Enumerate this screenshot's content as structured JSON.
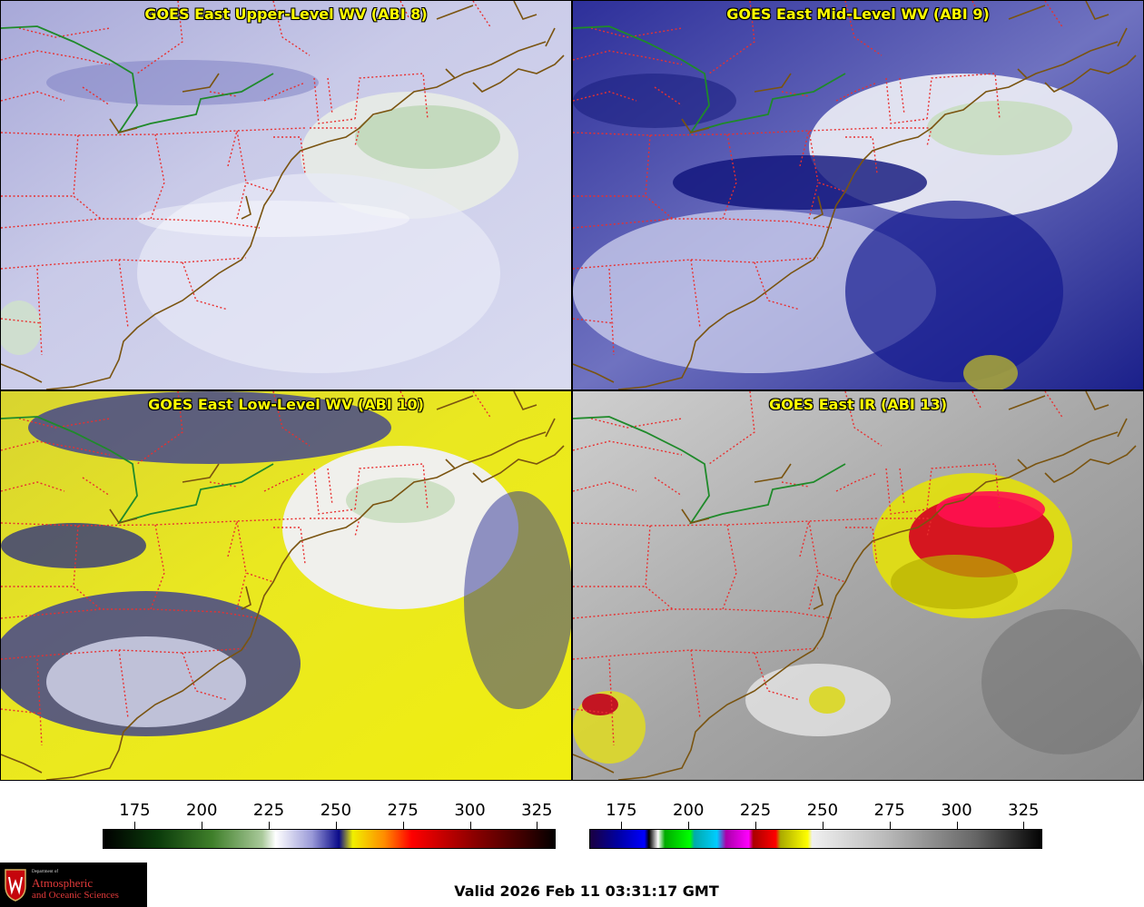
{
  "panels": {
    "upper": {
      "title": "GOES East Upper-Level WV (ABI 8)"
    },
    "mid": {
      "title": "GOES East Mid-Level WV (ABI 9)"
    },
    "low": {
      "title": "GOES East Low-Level WV (ABI 10)"
    },
    "ir": {
      "title": "GOES East IR (ABI 13)"
    }
  },
  "colorbar_wv": {
    "ticks": [
      "175",
      "200",
      "225",
      "250",
      "275",
      "300",
      "325"
    ],
    "min": 163,
    "max": 332
  },
  "colorbar_ir": {
    "ticks": [
      "175",
      "200",
      "225",
      "250",
      "275",
      "300",
      "325"
    ],
    "min": 163,
    "max": 332
  },
  "colors": {
    "state_borders": "#e83030",
    "coastline": "#7a5410",
    "great_lakes_border": "#1f8a2a",
    "title_text": "#ffff00"
  },
  "logo": {
    "dept": "Department of",
    "line1": "Atmospheric",
    "line2": "and Oceanic Sciences"
  },
  "valid_time": "Valid 2026 Feb 11 03:31:17 GMT"
}
